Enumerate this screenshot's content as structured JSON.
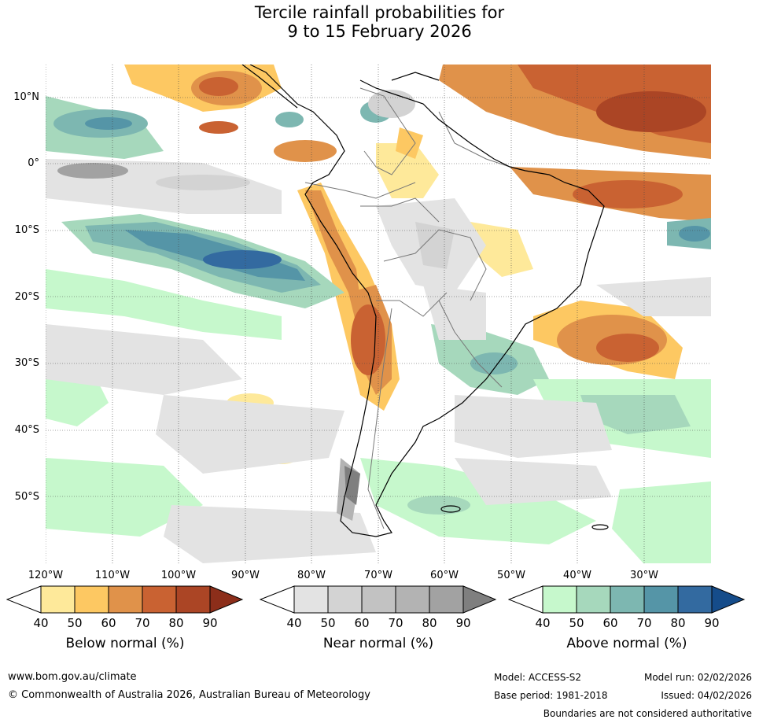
{
  "title": {
    "line1": "Tercile rainfall probabilities for",
    "line2": "9 to 15 February 2026"
  },
  "map": {
    "region": "South America",
    "lat_labels": [
      "10°N",
      "0°",
      "10°S",
      "20°S",
      "30°S",
      "40°S",
      "50°S"
    ],
    "lon_labels": [
      "120°W",
      "110°W",
      "100°W",
      "90°W",
      "80°W",
      "70°W",
      "60°W",
      "50°W",
      "40°W",
      "30°W"
    ]
  },
  "colorbars": [
    {
      "label": "Below normal (%)",
      "ticks": [
        "40",
        "50",
        "60",
        "70",
        "80",
        "90"
      ],
      "colors": [
        "#ffffff",
        "#fee99a",
        "#fdc862",
        "#e0924a",
        "#c96232",
        "#ab4525",
        "#8c2e1a"
      ]
    },
    {
      "label": "Near normal (%)",
      "ticks": [
        "40",
        "50",
        "60",
        "70",
        "80",
        "90"
      ],
      "colors": [
        "#ffffff",
        "#e3e3e3",
        "#d3d3d3",
        "#c2c2c2",
        "#b3b3b3",
        "#a2a2a2",
        "#7f7f7f"
      ]
    },
    {
      "label": "Above normal (%)",
      "ticks": [
        "40",
        "50",
        "60",
        "70",
        "80",
        "90"
      ],
      "colors": [
        "#ffffff",
        "#c6f8cc",
        "#a6d8bc",
        "#7db7b1",
        "#5595a7",
        "#336aa0",
        "#154c8a"
      ]
    }
  ],
  "footer": {
    "website": "www.bom.gov.au/climate",
    "copyright": "© Commonwealth of Australia 2026, Australian Bureau of Meteorology",
    "model": "Model: ACCESS-S2",
    "base_period": "Base period: 1981-2018",
    "model_run": "Model run: 02/02/2026",
    "issued": "Issued: 04/02/2026",
    "disclaimer": "Boundaries are not considered authoritative"
  }
}
